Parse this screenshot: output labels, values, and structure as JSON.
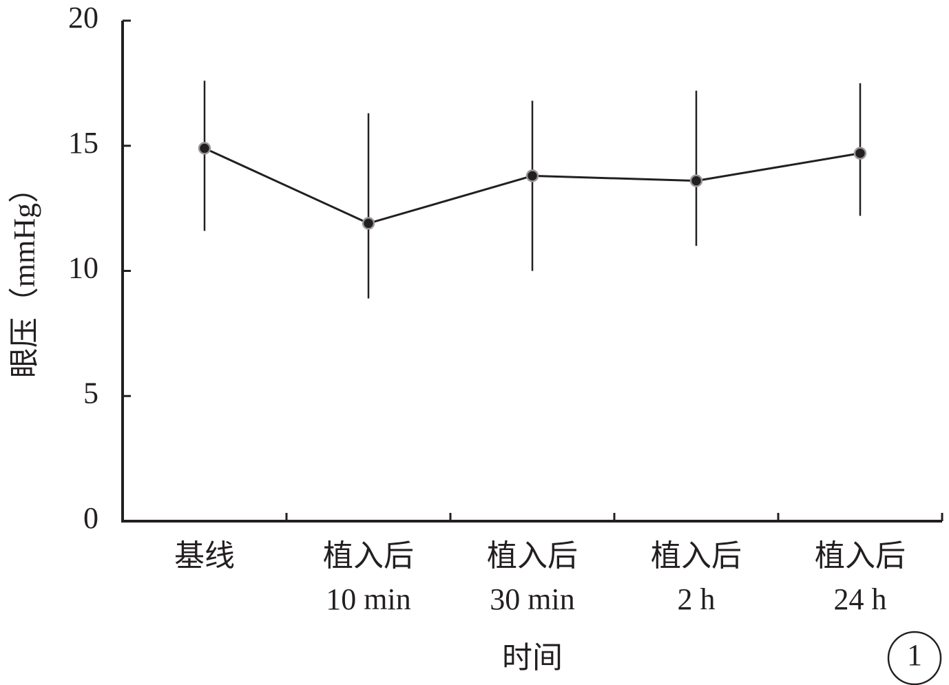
{
  "chart_data": {
    "type": "line",
    "y_label": "眼压（mmHg）",
    "x_label": "时间",
    "annotation": "1",
    "categories": [
      [
        "基线"
      ],
      [
        "植入后",
        "10 min"
      ],
      [
        "植入后",
        "30 min"
      ],
      [
        "植入后",
        "2 h"
      ],
      [
        "植入后",
        "24 h"
      ]
    ],
    "series": [
      {
        "color": "#231f20",
        "values": [
          14.9,
          11.9,
          13.8,
          13.6,
          14.7
        ]
      }
    ],
    "error_low": [
      11.6,
      8.9,
      10.0,
      11.0,
      12.2
    ],
    "error_high": [
      17.6,
      16.3,
      16.8,
      17.2,
      17.5
    ],
    "ylim": [
      0,
      20
    ],
    "yticks": [
      0,
      5,
      10,
      15,
      20
    ]
  }
}
